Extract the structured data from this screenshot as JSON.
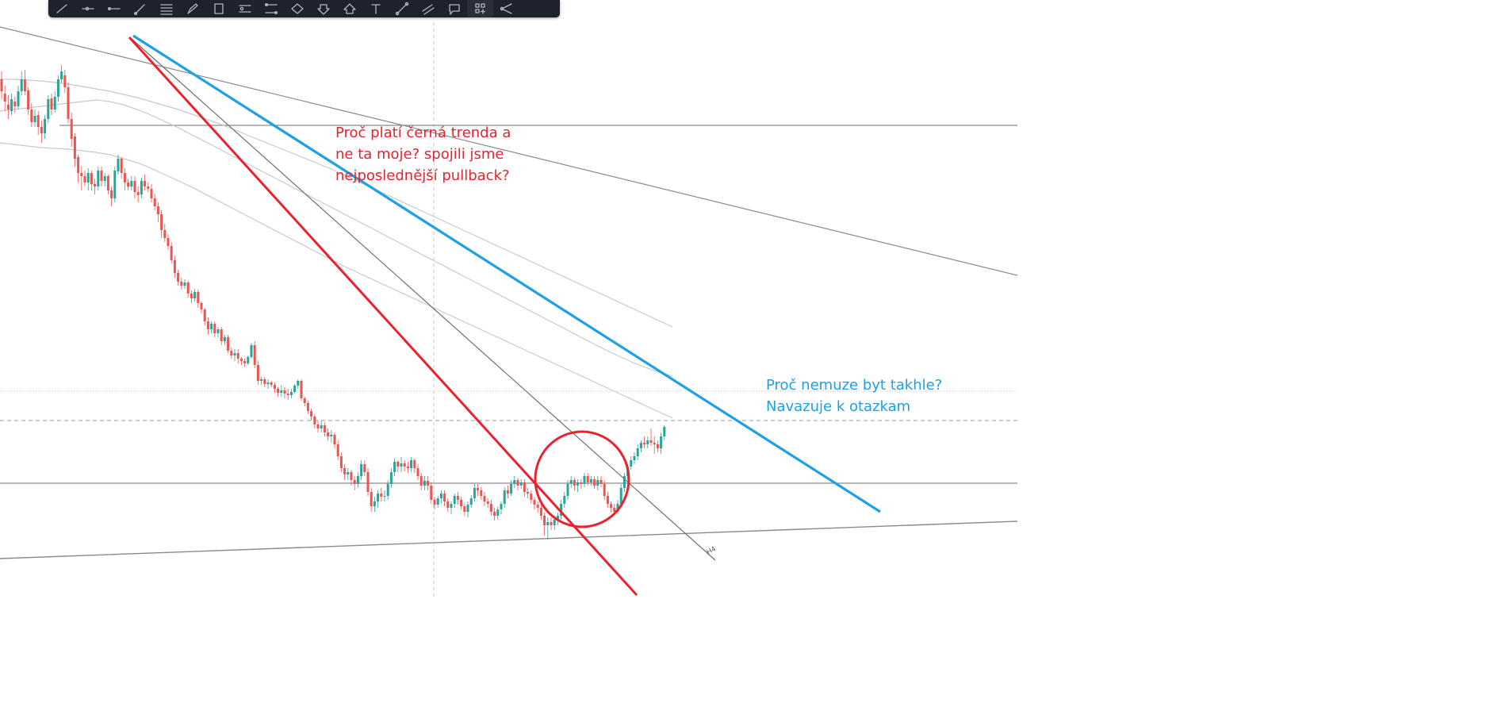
{
  "toolbar": {
    "tools": [
      {
        "name": "trend-line-icon"
      },
      {
        "name": "horizontal-ray-icon"
      },
      {
        "name": "horizontal-line-icon"
      },
      {
        "name": "brush-icon"
      },
      {
        "name": "fib-retracement-icon"
      },
      {
        "name": "pen-icon"
      },
      {
        "name": "rectangle-icon"
      },
      {
        "name": "long-position-icon"
      },
      {
        "name": "price-range-icon"
      },
      {
        "name": "pattern-icon"
      },
      {
        "name": "arrow-down-marker-icon"
      },
      {
        "name": "arrow-up-marker-icon"
      },
      {
        "name": "text-icon"
      },
      {
        "name": "ruler-icon"
      },
      {
        "name": "parallel-channel-icon"
      },
      {
        "name": "callout-icon"
      },
      {
        "name": "object-tree-icon"
      },
      {
        "name": "visual-order-icon"
      }
    ]
  },
  "annotations": {
    "red_note": "Proč platí černá trenda a\nne ta moje? spojili jsme\nnejposlednější pullback?",
    "blue_note": "Proč nemuze byt takhle?\nNavazuje k otazkam"
  },
  "drawing_label": "H4",
  "colors": {
    "red_line": "#e8232e",
    "blue_line": "#1ea0e6",
    "up_candle": "#26a69a",
    "down_candle": "#ef5350",
    "trend_line": "#8a8a8a",
    "toolbar_bg": "#1e222d",
    "background": "#ffffff"
  },
  "chart_data": {
    "type": "candlestick",
    "candles": [
      [
        300,
        285,
        310,
        275
      ],
      [
        282,
        272,
        292,
        260
      ],
      [
        268,
        262,
        280,
        250
      ],
      [
        260,
        275,
        282,
        255
      ],
      [
        272,
        266,
        278,
        258
      ],
      [
        266,
        285,
        292,
        262
      ],
      [
        285,
        300,
        310,
        280
      ],
      [
        300,
        285,
        312,
        280
      ],
      [
        286,
        262,
        290,
        255
      ],
      [
        262,
        246,
        270,
        240
      ],
      [
        246,
        254,
        262,
        240
      ],
      [
        255,
        240,
        260,
        230
      ],
      [
        240,
        232,
        248,
        220
      ],
      [
        232,
        250,
        255,
        225
      ],
      [
        250,
        275,
        280,
        245
      ],
      [
        276,
        262,
        282,
        255
      ],
      [
        262,
        278,
        285,
        258
      ],
      [
        278,
        300,
        305,
        272
      ],
      [
        300,
        310,
        318,
        295
      ],
      [
        305,
        290,
        312,
        283
      ],
      [
        290,
        250,
        296,
        245
      ],
      [
        250,
        225,
        258,
        215
      ],
      [
        228,
        200,
        232,
        190
      ],
      [
        202,
        182,
        205,
        170
      ],
      [
        182,
        178,
        190,
        160
      ],
      [
        178,
        170,
        185,
        165
      ],
      [
        170,
        182,
        188,
        160
      ],
      [
        182,
        168,
        185,
        160
      ],
      [
        168,
        165,
        175,
        155
      ],
      [
        165,
        185,
        190,
        160
      ],
      [
        185,
        172,
        190,
        165
      ],
      [
        172,
        178,
        182,
        165
      ],
      [
        178,
        160,
        180,
        155
      ],
      [
        160,
        150,
        165,
        140
      ],
      [
        150,
        185,
        190,
        145
      ],
      [
        184,
        200,
        205,
        180
      ],
      [
        200,
        182,
        202,
        175
      ],
      [
        182,
        170,
        188,
        160
      ],
      [
        170,
        165,
        175,
        160
      ],
      [
        165,
        172,
        178,
        160
      ],
      [
        172,
        158,
        178,
        150
      ],
      [
        158,
        154,
        165,
        145
      ],
      [
        155,
        172,
        176,
        150
      ],
      [
        172,
        165,
        180,
        160
      ],
      [
        165,
        162,
        170,
        158
      ],
      [
        162,
        150,
        168,
        145
      ],
      [
        150,
        140,
        156,
        135
      ],
      [
        140,
        130,
        145,
        120
      ],
      [
        130,
        110,
        135,
        100
      ],
      [
        110,
        100,
        118,
        95
      ],
      [
        100,
        90,
        105,
        85
      ],
      [
        90,
        72,
        95,
        68
      ],
      [
        72,
        56,
        78,
        50
      ],
      [
        56,
        45,
        60,
        40
      ],
      [
        45,
        40,
        50,
        35
      ],
      [
        40,
        44,
        48,
        36
      ],
      [
        44,
        30,
        46,
        25
      ],
      [
        30,
        24,
        34,
        18
      ],
      [
        24,
        32,
        36,
        20
      ],
      [
        32,
        18,
        35,
        12
      ],
      [
        18,
        10,
        20,
        5
      ],
      [
        10,
        -5,
        12,
        -10
      ],
      [
        -5,
        -15,
        0,
        -22
      ],
      [
        -15,
        -8,
        -5,
        -20
      ],
      [
        -8,
        -20,
        -5,
        -25
      ],
      [
        -20,
        -15,
        -12,
        -25
      ],
      [
        -15,
        -30,
        -12,
        -35
      ],
      [
        -30,
        -25,
        -22,
        -35
      ],
      [
        -25,
        -42,
        -22,
        -45
      ],
      [
        -42,
        -48,
        -38,
        -52
      ],
      [
        -48,
        -45,
        -40,
        -55
      ],
      [
        -45,
        -52,
        -40,
        -58
      ],
      [
        -52,
        -55,
        -50,
        -60
      ],
      [
        -55,
        -58,
        -52,
        -62
      ],
      [
        -58,
        -50,
        -48,
        -60
      ],
      [
        -50,
        -35,
        -32,
        -52
      ],
      [
        -35,
        -60,
        -30,
        -64
      ],
      [
        -60,
        -80,
        -55,
        -85
      ],
      [
        -80,
        -78,
        -75,
        -85
      ],
      [
        -78,
        -84,
        -75,
        -88
      ],
      [
        -84,
        -82,
        -78,
        -90
      ],
      [
        -82,
        -85,
        -80,
        -88
      ],
      [
        -85,
        -90,
        -82,
        -95
      ],
      [
        -90,
        -95,
        -88,
        -100
      ],
      [
        -95,
        -92,
        -85,
        -100
      ],
      [
        -92,
        -96,
        -88,
        -102
      ],
      [
        -96,
        -98,
        -90,
        -104
      ],
      [
        -98,
        -94,
        -90,
        -102
      ],
      [
        -94,
        -86,
        -84,
        -96
      ],
      [
        -86,
        -80,
        -78,
        -90
      ],
      [
        -80,
        -102,
        -78,
        -105
      ],
      [
        -102,
        -108,
        -100,
        -112
      ],
      [
        -108,
        -118,
        -105,
        -122
      ],
      [
        -118,
        -125,
        -115,
        -130
      ],
      [
        -125,
        -135,
        -122,
        -140
      ],
      [
        -135,
        -140,
        -130,
        -145
      ],
      [
        -140,
        -136,
        -130,
        -145
      ],
      [
        -136,
        -145,
        -132,
        -150
      ],
      [
        -145,
        -150,
        -140,
        -155
      ],
      [
        -150,
        -148,
        -142,
        -158
      ],
      [
        -148,
        -160,
        -145,
        -165
      ],
      [
        -160,
        -175,
        -155,
        -180
      ],
      [
        -175,
        -190,
        -170,
        -195
      ],
      [
        -190,
        -198,
        -185,
        -205
      ],
      [
        -198,
        -195,
        -190,
        -205
      ],
      [
        -195,
        -205,
        -192,
        -212
      ],
      [
        -205,
        -210,
        -200,
        -218
      ],
      [
        -210,
        -200,
        -195,
        -215
      ],
      [
        -200,
        -185,
        -180,
        -205
      ],
      [
        -185,
        -195,
        -180,
        -200
      ],
      [
        -195,
        -220,
        -190,
        -225
      ],
      [
        -220,
        -238,
        -215,
        -245
      ],
      [
        -238,
        -232,
        -226,
        -245
      ],
      [
        -232,
        -222,
        -218,
        -240
      ],
      [
        -222,
        -226,
        -215,
        -232
      ],
      [
        -226,
        -225,
        -218,
        -232
      ],
      [
        -225,
        -210,
        -205,
        -230
      ],
      [
        -210,
        -195,
        -190,
        -215
      ],
      [
        -195,
        -182,
        -178,
        -200
      ],
      [
        -182,
        -188,
        -180,
        -195
      ],
      [
        -188,
        -184,
        -176,
        -195
      ],
      [
        -184,
        -188,
        -180,
        -194
      ],
      [
        -188,
        -190,
        -182,
        -196
      ],
      [
        -190,
        -180,
        -176,
        -195
      ],
      [
        -180,
        -190,
        -178,
        -196
      ],
      [
        -190,
        -200,
        -185,
        -205
      ],
      [
        -200,
        -212,
        -196,
        -218
      ],
      [
        -212,
        -206,
        -200,
        -218
      ],
      [
        -206,
        -212,
        -200,
        -218
      ],
      [
        -212,
        -230,
        -208,
        -235
      ],
      [
        -230,
        -236,
        -226,
        -242
      ],
      [
        -236,
        -228,
        -225,
        -240
      ],
      [
        -228,
        -222,
        -218,
        -235
      ],
      [
        -222,
        -232,
        -218,
        -238
      ],
      [
        -232,
        -240,
        -228,
        -245
      ],
      [
        -240,
        -235,
        -232,
        -248
      ],
      [
        -235,
        -225,
        -222,
        -240
      ],
      [
        -225,
        -230,
        -220,
        -236
      ],
      [
        -230,
        -238,
        -226,
        -242
      ],
      [
        -238,
        -245,
        -234,
        -250
      ],
      [
        -245,
        -236,
        -232,
        -252
      ],
      [
        -236,
        -228,
        -224,
        -240
      ],
      [
        -228,
        -215,
        -210,
        -232
      ],
      [
        -215,
        -218,
        -210,
        -225
      ],
      [
        -218,
        -225,
        -214,
        -230
      ],
      [
        -225,
        -232,
        -220,
        -238
      ],
      [
        -232,
        -235,
        -228,
        -240
      ],
      [
        -235,
        -245,
        -230,
        -250
      ],
      [
        -245,
        -250,
        -240,
        -256
      ],
      [
        -250,
        -242,
        -238,
        -255
      ],
      [
        -242,
        -235,
        -232,
        -248
      ],
      [
        -235,
        -218,
        -214,
        -240
      ],
      [
        -218,
        -222,
        -212,
        -228
      ],
      [
        -222,
        -210,
        -205,
        -225
      ],
      [
        -210,
        -205,
        -200,
        -215
      ],
      [
        -205,
        -212,
        -202,
        -218
      ],
      [
        -212,
        -208,
        -204,
        -216
      ],
      [
        -208,
        -220,
        -204,
        -226
      ],
      [
        -220,
        -222,
        -215,
        -228
      ],
      [
        -222,
        -230,
        -218,
        -235
      ],
      [
        -230,
        -236,
        -226,
        -242
      ],
      [
        -236,
        -240,
        -232,
        -246
      ],
      [
        -240,
        -250,
        -236,
        -255
      ],
      [
        -250,
        -262,
        -246,
        -275
      ],
      [
        -262,
        -258,
        -252,
        -280
      ],
      [
        -258,
        -262,
        -252,
        -268
      ],
      [
        -262,
        -255,
        -250,
        -268
      ],
      [
        -255,
        -250,
        -246,
        -262
      ],
      [
        -250,
        -235,
        -230,
        -255
      ],
      [
        -235,
        -225,
        -220,
        -240
      ],
      [
        -225,
        -210,
        -205,
        -230
      ],
      [
        -210,
        -205,
        -200,
        -215
      ],
      [
        -205,
        -212,
        -202,
        -218
      ],
      [
        -212,
        -208,
        -204,
        -220
      ],
      [
        -208,
        -210,
        -204,
        -216
      ],
      [
        -210,
        -200,
        -196,
        -214
      ],
      [
        -200,
        -208,
        -196,
        -212
      ],
      [
        -208,
        -204,
        -200,
        -212
      ],
      [
        -204,
        -212,
        -200,
        -216
      ],
      [
        -212,
        -205,
        -200,
        -218
      ],
      [
        -205,
        -210,
        -200,
        -214
      ],
      [
        -210,
        -225,
        -205,
        -230
      ],
      [
        -225,
        -235,
        -220,
        -240
      ],
      [
        -235,
        -240,
        -232,
        -246
      ],
      [
        -240,
        -245,
        -235,
        -250
      ],
      [
        -245,
        -235,
        -230,
        -248
      ],
      [
        -235,
        -215,
        -210,
        -240
      ],
      [
        -215,
        -200,
        -196,
        -220
      ],
      [
        -200,
        -188,
        -185,
        -205
      ],
      [
        -188,
        -180,
        -175,
        -192
      ],
      [
        -180,
        -175,
        -170,
        -185
      ],
      [
        -175,
        -165,
        -160,
        -180
      ],
      [
        -165,
        -158,
        -155,
        -170
      ],
      [
        -158,
        -160,
        -150,
        -165
      ],
      [
        -160,
        -155,
        -150,
        -165
      ],
      [
        -155,
        -158,
        -140,
        -162
      ],
      [
        -158,
        -160,
        -150,
        -172
      ],
      [
        -160,
        -165,
        -155,
        -170
      ],
      [
        -165,
        -150,
        -145,
        -172
      ],
      [
        -150,
        -138,
        -136,
        -155
      ]
    ],
    "moving_averages": [
      {
        "values": [
          220,
          218,
          216,
          214,
          213,
          212,
          210,
          208,
          205,
          200,
          195,
          188,
          180,
          172,
          164,
          155,
          146,
          137,
          128,
          119,
          110,
          101,
          92,
          83,
          74,
          65,
          57,
          49,
          41,
          33,
          25,
          17,
          9,
          1,
          -7,
          -15,
          -23,
          -31,
          -39,
          -47,
          -55,
          -63,
          -71,
          -79,
          -87,
          -95,
          -103,
          -111,
          -119,
          -127
        ]
      },
      {
        "values": [
          260,
          262,
          264,
          266,
          268,
          270,
          272,
          274,
          272,
          268,
          262,
          255,
          247,
          239,
          230,
          221,
          212,
          203,
          194,
          185,
          176,
          167,
          158,
          149,
          140,
          131,
          122,
          113,
          104,
          95,
          86,
          77,
          68,
          59,
          50,
          41,
          32,
          23,
          14,
          5,
          -4,
          -13,
          -22,
          -31,
          -40,
          -48,
          -56,
          -63,
          -69,
          -74
        ]
      },
      {
        "values": [
          300,
          300,
          299,
          298,
          296,
          294,
          291,
          288,
          285,
          281,
          277,
          272,
          267,
          262,
          256,
          250,
          244,
          237,
          230,
          223,
          216,
          209,
          202,
          195,
          188,
          180,
          172,
          164,
          156,
          148,
          140,
          132,
          124,
          116,
          108,
          100,
          92,
          84,
          76,
          68,
          60,
          52,
          44,
          36,
          28,
          20,
          12,
          4,
          -4,
          -12
        ]
      }
    ]
  }
}
